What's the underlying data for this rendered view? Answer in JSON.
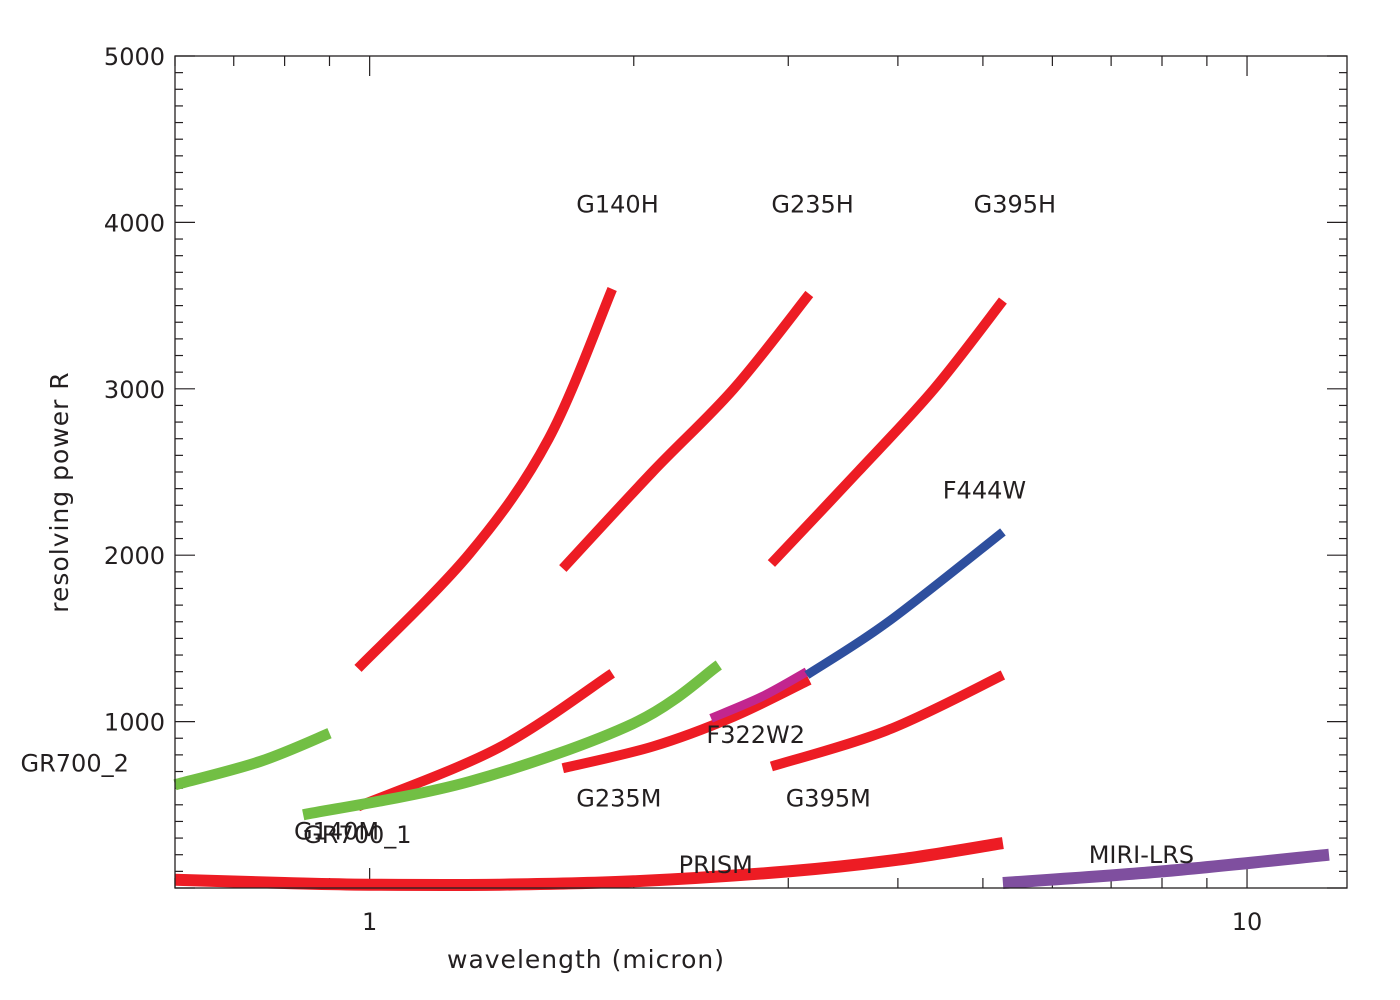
{
  "chart_data": {
    "type": "line",
    "title": "",
    "xlabel": "wavelength (micron)",
    "ylabel": "resolving power R",
    "xscale": "log",
    "xlim": [
      0.6,
      13
    ],
    "ylim": [
      0,
      5000
    ],
    "x_ticks": [
      1,
      10
    ],
    "x_tick_labels": [
      "1",
      "10"
    ],
    "y_ticks": [
      1000,
      2000,
      3000,
      4000,
      5000
    ],
    "y_tick_labels": [
      "1000",
      "2000",
      "3000",
      "4000",
      "5000"
    ],
    "colors": {
      "nirspec": "#ed1c24",
      "niriss": "#72bf44",
      "nircam_f322w2": "#c2268f",
      "nircam_f444w": "#2e4f9e",
      "miri": "#7f4f9f",
      "axis": "#231f20"
    },
    "series": [
      {
        "name": "G140H",
        "color": "nirspec",
        "width": 10,
        "x": [
          0.97,
          1.3,
          1.6,
          1.89
        ],
        "y": [
          1320,
          2010,
          2700,
          3600
        ],
        "label": {
          "text": "G140H",
          "x": 1.72,
          "y": 4060
        }
      },
      {
        "name": "G235H",
        "color": "nirspec",
        "width": 10,
        "x": [
          1.66,
          2.1,
          2.6,
          3.17
        ],
        "y": [
          1920,
          2500,
          3000,
          3570
        ],
        "label": {
          "text": "G235H",
          "x": 2.87,
          "y": 4060
        }
      },
      {
        "name": "G395H",
        "color": "nirspec",
        "width": 10,
        "x": [
          2.87,
          3.6,
          4.4,
          5.27
        ],
        "y": [
          1950,
          2500,
          3000,
          3530
        ],
        "label": {
          "text": "G395H",
          "x": 4.88,
          "y": 4060
        }
      },
      {
        "name": "G140M",
        "color": "nirspec",
        "width": 10,
        "x": [
          0.97,
          1.4,
          1.89
        ],
        "y": [
          490,
          840,
          1290
        ],
        "label": {
          "text": "G140M",
          "x": 0.82,
          "y": 290
        }
      },
      {
        "name": "G235M",
        "color": "nirspec",
        "width": 10,
        "x": [
          1.66,
          2.1,
          2.6,
          3.17
        ],
        "y": [
          720,
          850,
          1030,
          1250
        ],
        "label": {
          "text": "G235M",
          "x": 1.72,
          "y": 490
        }
      },
      {
        "name": "G395M",
        "color": "nirspec",
        "width": 10,
        "x": [
          2.87,
          3.9,
          5.27
        ],
        "y": [
          730,
          950,
          1280
        ],
        "label": {
          "text": "G395M",
          "x": 2.98,
          "y": 490
        }
      },
      {
        "name": "PRISM",
        "color": "nirspec",
        "width": 12,
        "x": [
          0.6,
          0.8,
          1.0,
          1.4,
          2.0,
          3.0,
          4.0,
          5.27
        ],
        "y": [
          50,
          30,
          20,
          20,
          40,
          100,
          170,
          270
        ],
        "label": {
          "text": "PRISM",
          "x": 2.25,
          "y": 90
        }
      },
      {
        "name": "GR700_2",
        "color": "niriss",
        "width": 11,
        "x": [
          0.6,
          0.75,
          0.9
        ],
        "y": [
          620,
          760,
          930
        ],
        "label": {
          "text": "GR700_2",
          "x": 0.4,
          "y": 700
        }
      },
      {
        "name": "GR700_1",
        "color": "niriss",
        "width": 11,
        "x": [
          0.84,
          1.3,
          2.0,
          2.5
        ],
        "y": [
          440,
          640,
          990,
          1340
        ],
        "label": {
          "text": "GR700_1",
          "x": 0.84,
          "y": 270
        }
      },
      {
        "name": "F322W2",
        "color": "nircam_f322w2",
        "width": 9,
        "x": [
          2.45,
          2.8,
          3.15
        ],
        "y": [
          1020,
          1150,
          1300
        ],
        "label": {
          "text": "F322W2",
          "x": 2.42,
          "y": 870
        }
      },
      {
        "name": "F444W",
        "color": "nircam_f444w",
        "width": 9,
        "x": [
          3.15,
          3.9,
          5.27
        ],
        "y": [
          1280,
          1600,
          2140
        ],
        "label": {
          "text": "F444W",
          "x": 4.5,
          "y": 2340
        }
      },
      {
        "name": "MIRI-LRS",
        "color": "miri",
        "width": 12,
        "x": [
          5.27,
          8.0,
          12.4
        ],
        "y": [
          30,
          100,
          200
        ],
        "label": {
          "text": "MIRI-LRS",
          "x": 6.6,
          "y": 150
        }
      }
    ]
  }
}
